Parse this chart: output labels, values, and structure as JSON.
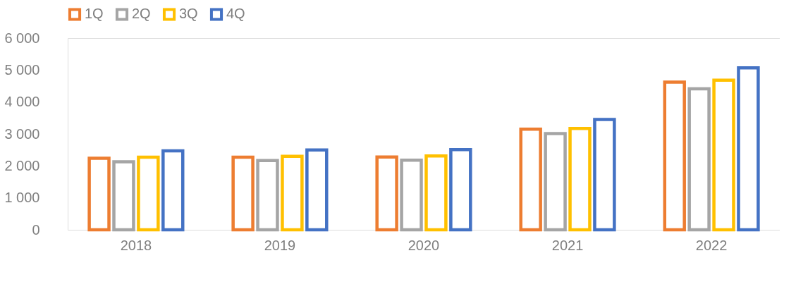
{
  "chart_data": {
    "type": "bar",
    "categories": [
      "2018",
      "2019",
      "2020",
      "2021",
      "2022"
    ],
    "series": [
      {
        "name": "1Q",
        "color": "#ed7d31",
        "values": [
          2240,
          2270,
          2280,
          3150,
          4620
        ]
      },
      {
        "name": "2Q",
        "color": "#a5a5a5",
        "values": [
          2130,
          2170,
          2180,
          3010,
          4410
        ]
      },
      {
        "name": "3Q",
        "color": "#ffc000",
        "values": [
          2270,
          2300,
          2310,
          3170,
          4680
        ]
      },
      {
        "name": "4Q",
        "color": "#4472c4",
        "values": [
          2470,
          2500,
          2510,
          3450,
          5070
        ]
      }
    ],
    "ylim": [
      0,
      6000
    ],
    "yticks": [
      0,
      1000,
      2000,
      3000,
      4000,
      5000,
      6000
    ],
    "grid": false,
    "legend": "top"
  }
}
